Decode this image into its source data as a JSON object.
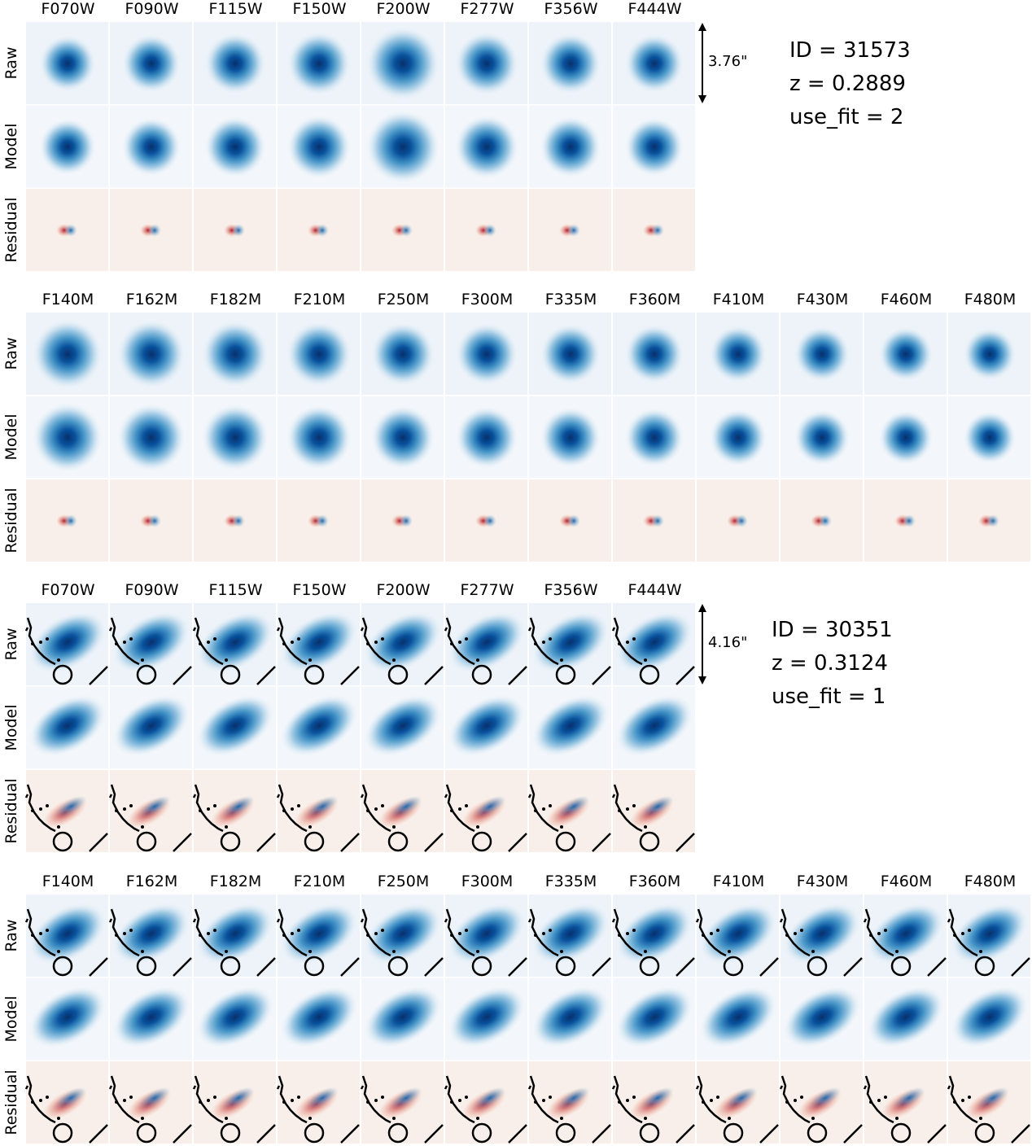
{
  "blocks": [
    {
      "filters": [
        "F070W",
        "F090W",
        "F115W",
        "F150W",
        "F200W",
        "F277W",
        "F356W",
        "F444W"
      ],
      "rows": [
        "Raw",
        "Model",
        "Residual"
      ],
      "scale": "3.76\"",
      "info": [
        "ID = 31573",
        "z = 0.2889",
        "use_fit = 2"
      ]
    },
    {
      "filters": [
        "F140M",
        "F162M",
        "F182M",
        "F210M",
        "F250M",
        "F300M",
        "F335M",
        "F360M",
        "F410M",
        "F430M",
        "F460M",
        "F480M"
      ],
      "rows": [
        "Raw",
        "Model",
        "Residual"
      ]
    },
    {
      "filters": [
        "F070W",
        "F090W",
        "F115W",
        "F150W",
        "F200W",
        "F277W",
        "F356W",
        "F444W"
      ],
      "rows": [
        "Raw",
        "Model",
        "Residual"
      ],
      "scale": "4.16\"",
      "info": [
        "ID = 30351",
        "z = 0.3124",
        "use_fit = 1"
      ]
    },
    {
      "filters": [
        "F140M",
        "F162M",
        "F182M",
        "F210M",
        "F250M",
        "F300M",
        "F335M",
        "F360M",
        "F410M",
        "F430M",
        "F460M",
        "F480M"
      ],
      "rows": [
        "Raw",
        "Model",
        "Residual"
      ]
    }
  ]
}
